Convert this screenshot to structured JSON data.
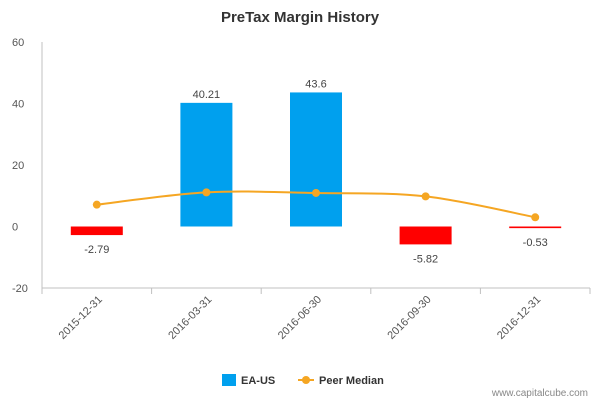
{
  "chart_data": {
    "type": "bar",
    "title": "PreTax Margin History",
    "categories": [
      "2015-12-31",
      "2016-03-31",
      "2016-06-30",
      "2016-09-30",
      "2016-12-31"
    ],
    "series": [
      {
        "name": "EA-US",
        "type": "bar",
        "values": [
          -2.79,
          40.21,
          43.6,
          -5.82,
          -0.53
        ],
        "labels": [
          "-2.79",
          "40.21",
          "43.6",
          "-5.82",
          "-0.53"
        ],
        "color_positive": "#00a0ee",
        "color_negative": "#ff0000"
      },
      {
        "name": "Peer Median",
        "type": "line",
        "values": [
          7.1,
          11.1,
          10.9,
          9.8,
          3.0
        ],
        "color": "#f5a623"
      }
    ],
    "ylim": [
      -20,
      60
    ],
    "yticks": [
      "60",
      "40",
      "20",
      "0",
      "-20"
    ],
    "grid": false,
    "legend": "bottom-center"
  },
  "credit": "www.capitalcube.com"
}
